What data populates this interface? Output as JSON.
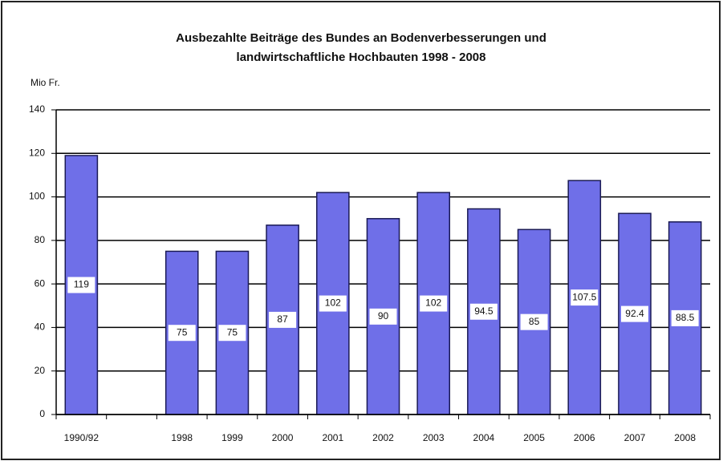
{
  "chart_data": {
    "type": "bar",
    "title": [
      "Ausbezahlte Beiträge des Bundes an Bodenverbesserungen und",
      "landwirtschaftliche Hochbauten 1998 - 2008"
    ],
    "y_label": "Mio Fr.",
    "categories": [
      "1990/92",
      null,
      "1998",
      "1999",
      "2000",
      "2001",
      "2002",
      "2003",
      "2004",
      "2005",
      "2006",
      "2007",
      "2008"
    ],
    "values": [
      119,
      null,
      75,
      75,
      87,
      102,
      90,
      102,
      94.5,
      85,
      107.5,
      92.4,
      88.5
    ],
    "color": "#6f6fe8",
    "ylim": [
      0,
      140
    ],
    "yticks": [
      0,
      20,
      40,
      60,
      80,
      100,
      120,
      140
    ],
    "grid": true
  }
}
